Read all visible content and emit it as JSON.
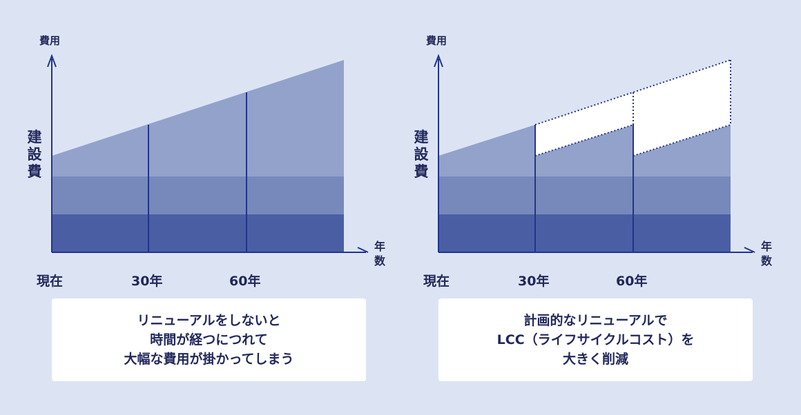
{
  "colors": {
    "background": "#dce4f4",
    "layer_top": "#93a2cb",
    "layer_middle": "#7789bb",
    "layer_bottom": "#4a5fa3",
    "line": "#22338c",
    "text": "#22285a"
  },
  "left": {
    "y_axis_title": "費用",
    "cost_label": "建設費",
    "x_axis_title": "年数",
    "ticks": [
      "現在",
      "30年",
      "60年"
    ],
    "caption": [
      "リニューアルをしないと",
      "時間が経つにつれて",
      "大幅な費用が掛かってしまう"
    ]
  },
  "right": {
    "y_axis_title": "費用",
    "cost_label": "建設費",
    "x_axis_title": "年数",
    "ticks": [
      "現在",
      "30年",
      "60年"
    ],
    "caption": [
      "計画的なリニューアルで",
      "LCC（ライフサイクルコスト）を",
      "大きく削減"
    ]
  }
}
